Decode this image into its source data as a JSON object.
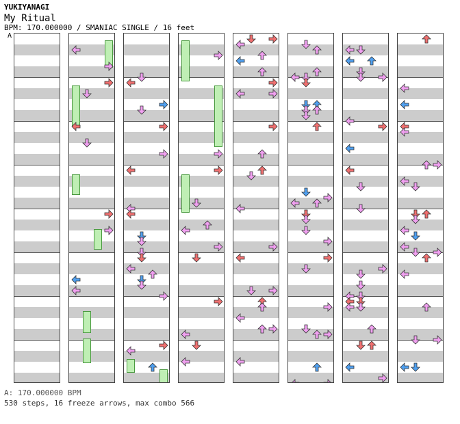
{
  "artist": "YUKIYANAGI",
  "title": "My Ritual",
  "info": "BPM: 170.000000 / SMANIAC SINGLE / 16 feet",
  "bpm_marker": "A",
  "footer": {
    "bpm_line": "A: 170.000000 BPM",
    "stats": "530 steps, 16 freeze arrows, max combo 566"
  },
  "colors": {
    "quarter": "#f07070",
    "eighth": "#50a0f0",
    "sixteenth": "#f0a0f0",
    "freeze": "#bfefb4",
    "band": "#cccccc"
  },
  "columns": 8,
  "measures_per_column": 8,
  "icons": [
    "left-arrow-icon",
    "down-arrow-icon",
    "up-arrow-icon",
    "right-arrow-icon"
  ]
}
